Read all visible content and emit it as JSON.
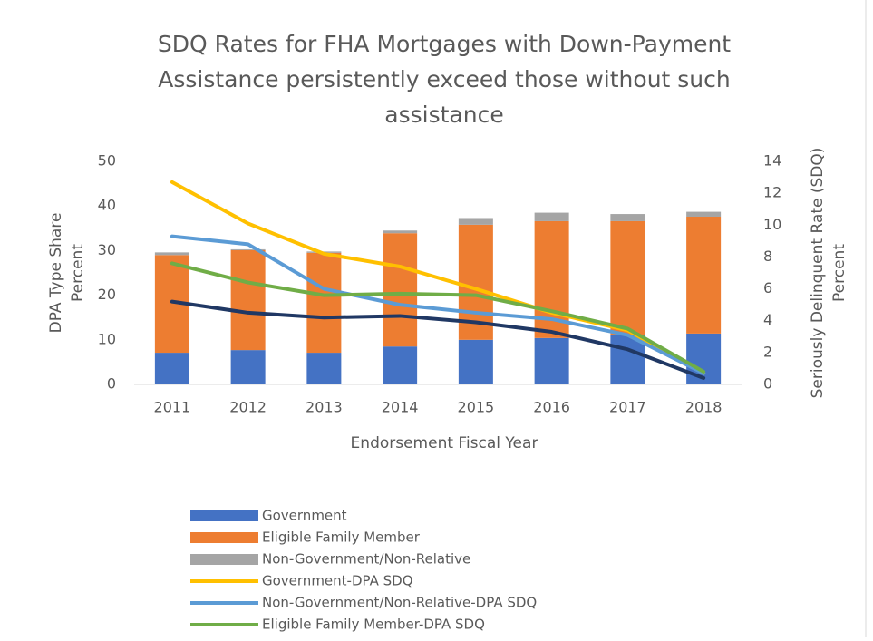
{
  "chart_data": {
    "type": "combo",
    "title": [
      "SDQ Rates for FHA Mortgages with Down-Payment",
      "Assistance persistently exceed those without such",
      "assistance"
    ],
    "xlabel": "Endorsement Fiscal Year",
    "ylabel": [
      "DPA Type Share",
      "Percent"
    ],
    "y2label": [
      "Seriously Delinquent Rate (SDQ)",
      "Percent"
    ],
    "categories": [
      "2011",
      "2012",
      "2013",
      "2014",
      "2015",
      "2016",
      "2017",
      "2018"
    ],
    "ylim": [
      0,
      50
    ],
    "yticks": [
      0,
      10,
      20,
      30,
      40,
      50
    ],
    "y2lim": [
      0,
      14
    ],
    "y2ticks": [
      0,
      2,
      4,
      6,
      8,
      10,
      12,
      14
    ],
    "series": [
      {
        "name": "Government",
        "type": "bar",
        "axis": "y",
        "color": "#4472c4",
        "values": [
          7.1,
          7.7,
          7.1,
          8.5,
          10.0,
          10.4,
          11.0,
          11.4
        ]
      },
      {
        "name": "Eligible Family Member",
        "type": "bar",
        "axis": "y",
        "color": "#ed7d31",
        "values": [
          21.9,
          22.4,
          22.4,
          25.4,
          25.8,
          26.2,
          25.6,
          26.2
        ]
      },
      {
        "name": "Non-Government/Non-Relative",
        "type": "bar",
        "axis": "y",
        "color": "#a5a5a5",
        "values": [
          0.6,
          0.2,
          0.3,
          0.6,
          1.5,
          1.9,
          1.6,
          1.1
        ]
      },
      {
        "name": "Government-DPA SDQ",
        "type": "line",
        "axis": "y2",
        "color": "#ffc000",
        "values": [
          12.7,
          10.1,
          8.2,
          7.4,
          6.0,
          4.5,
          3.4,
          0.7
        ]
      },
      {
        "name": "Non-Government/Non-Relative-DPA SDQ",
        "type": "line",
        "axis": "y2",
        "color": "#5b9bd5",
        "values": [
          9.3,
          8.8,
          6.0,
          5.0,
          4.5,
          4.1,
          3.1,
          0.7
        ]
      },
      {
        "name": "Eligible Family Member-DPA SDQ",
        "type": "line",
        "axis": "y2",
        "color": "#70ad47",
        "values": [
          7.6,
          6.4,
          5.6,
          5.7,
          5.6,
          4.6,
          3.5,
          0.8
        ]
      },
      {
        "type": "line",
        "axis": "y2",
        "color": "#203864",
        "values": [
          5.2,
          4.5,
          4.2,
          4.3,
          3.9,
          3.3,
          2.2,
          0.4
        ]
      }
    ]
  }
}
